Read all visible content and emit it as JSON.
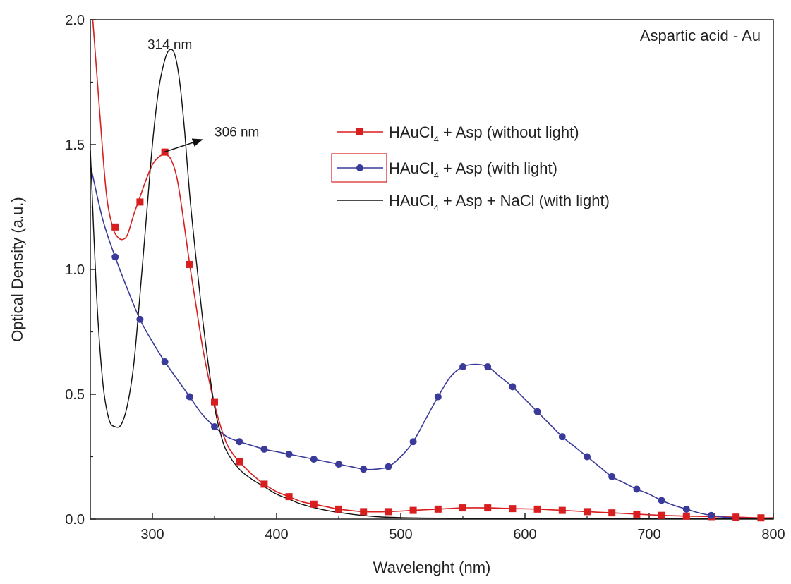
{
  "chart_data": {
    "type": "line",
    "title": "Aspartic acid - Au",
    "xlabel": "Wavelenght (nm)",
    "ylabel": "Optical Density (a.u.)",
    "xlim": [
      250,
      800
    ],
    "ylim": [
      0,
      2.0
    ],
    "x_ticks": [
      300,
      400,
      500,
      600,
      700,
      800
    ],
    "x_tick_labels": [
      "300",
      "400",
      "500",
      "600",
      "700",
      "800"
    ],
    "y_ticks": [
      0,
      0.5,
      1.0,
      1.5,
      2.0
    ],
    "y_tick_labels": [
      "0.0",
      "0.5",
      "1.0",
      "1.5",
      "2.0"
    ],
    "grid": false,
    "legend_position": "top-right",
    "series": [
      {
        "name": "HAuCl4 + Asp (without light)",
        "legend_main": "HAuCl",
        "legend_sub": "4",
        "legend_rest": " + Asp (without light)",
        "color": "#d81e1e",
        "marker": "square",
        "x": [
          252,
          258,
          263,
          268,
          272,
          276,
          280,
          285,
          290,
          295,
          300,
          305,
          310,
          315,
          320,
          325,
          330,
          335,
          340,
          345,
          350,
          355,
          360,
          365,
          370,
          380,
          390,
          400,
          410,
          420,
          430,
          440,
          450,
          470,
          490,
          510,
          530,
          550,
          570,
          590,
          610,
          630,
          650,
          670,
          690,
          710,
          730,
          750,
          770,
          790,
          800
        ],
        "y": [
          2.0,
          1.6,
          1.3,
          1.17,
          1.13,
          1.12,
          1.14,
          1.22,
          1.29,
          1.36,
          1.42,
          1.45,
          1.46,
          1.44,
          1.36,
          1.2,
          1.02,
          0.86,
          0.7,
          0.57,
          0.46,
          0.37,
          0.3,
          0.26,
          0.23,
          0.18,
          0.14,
          0.11,
          0.09,
          0.07,
          0.06,
          0.05,
          0.04,
          0.03,
          0.03,
          0.035,
          0.04,
          0.045,
          0.045,
          0.042,
          0.04,
          0.035,
          0.03,
          0.025,
          0.02,
          0.015,
          0.012,
          0.01,
          0.008,
          0.005,
          0.005
        ],
        "markers_x": [
          270,
          290,
          310,
          330,
          350,
          370,
          390,
          410,
          430,
          450,
          470,
          490,
          510,
          530,
          550,
          570,
          590,
          610,
          630,
          650,
          670,
          690,
          710,
          730,
          750,
          770,
          790
        ],
        "markers_y": [
          1.17,
          1.27,
          1.47,
          1.02,
          0.47,
          0.23,
          0.14,
          0.09,
          0.06,
          0.04,
          0.03,
          0.03,
          0.035,
          0.04,
          0.045,
          0.045,
          0.042,
          0.04,
          0.035,
          0.03,
          0.025,
          0.02,
          0.015,
          0.012,
          0.01,
          0.008,
          0.005
        ]
      },
      {
        "name": "HAuCl4 + Asp (with light)",
        "legend_main": "HAuCl",
        "legend_sub": "4",
        "legend_rest": " + Asp (with light)",
        "color": "#3a3a9a",
        "marker": "circle",
        "x": [
          250,
          260,
          270,
          280,
          290,
          300,
          310,
          320,
          330,
          340,
          350,
          360,
          370,
          380,
          390,
          400,
          410,
          420,
          430,
          440,
          450,
          460,
          470,
          480,
          490,
          500,
          510,
          520,
          530,
          540,
          550,
          560,
          570,
          580,
          590,
          600,
          610,
          620,
          630,
          640,
          650,
          660,
          670,
          680,
          690,
          700,
          710,
          720,
          730,
          740,
          750,
          760,
          770,
          780,
          790,
          800
        ],
        "y": [
          1.42,
          1.2,
          1.05,
          0.92,
          0.8,
          0.71,
          0.63,
          0.56,
          0.49,
          0.42,
          0.37,
          0.33,
          0.31,
          0.295,
          0.28,
          0.27,
          0.26,
          0.25,
          0.24,
          0.23,
          0.22,
          0.21,
          0.2,
          0.2,
          0.21,
          0.25,
          0.31,
          0.4,
          0.49,
          0.57,
          0.61,
          0.62,
          0.61,
          0.57,
          0.53,
          0.48,
          0.43,
          0.38,
          0.33,
          0.29,
          0.25,
          0.21,
          0.17,
          0.145,
          0.12,
          0.1,
          0.075,
          0.055,
          0.04,
          0.025,
          0.015,
          0.008,
          0.005,
          0.003,
          0.002,
          0.001
        ],
        "markers_x": [
          270,
          290,
          310,
          330,
          350,
          370,
          390,
          410,
          430,
          450,
          470,
          490,
          510,
          530,
          550,
          570,
          590,
          610,
          630,
          650,
          670,
          690,
          710,
          730,
          750
        ],
        "markers_y": [
          1.05,
          0.8,
          0.63,
          0.49,
          0.37,
          0.31,
          0.28,
          0.26,
          0.24,
          0.22,
          0.2,
          0.21,
          0.31,
          0.49,
          0.61,
          0.61,
          0.53,
          0.43,
          0.33,
          0.25,
          0.17,
          0.12,
          0.075,
          0.04,
          0.015
        ]
      },
      {
        "name": "HAuCl4 + Asp + NaCl (with light)",
        "legend_main": "HAuCl",
        "legend_sub": "4",
        "legend_rest": " + Asp + NaCl (with light)",
        "color": "#111111",
        "marker": "none",
        "x": [
          250,
          255,
          260,
          265,
          270,
          275,
          280,
          285,
          290,
          295,
          300,
          305,
          310,
          314,
          318,
          322,
          326,
          330,
          335,
          340,
          345,
          350,
          355,
          360,
          370,
          380,
          390,
          400,
          410,
          420,
          440,
          460,
          480,
          500,
          520,
          550,
          600,
          650,
          700,
          750,
          800
        ],
        "y": [
          1.48,
          0.9,
          0.55,
          0.4,
          0.37,
          0.38,
          0.46,
          0.62,
          0.9,
          1.2,
          1.5,
          1.72,
          1.84,
          1.88,
          1.86,
          1.75,
          1.55,
          1.3,
          1.05,
          0.82,
          0.62,
          0.45,
          0.34,
          0.27,
          0.2,
          0.16,
          0.13,
          0.1,
          0.08,
          0.06,
          0.035,
          0.02,
          0.01,
          0.006,
          0.004,
          0.003,
          0.002,
          0.002,
          0.001,
          0.001,
          0.001
        ]
      }
    ],
    "annotations": [
      {
        "text": "314 nm",
        "x": 314,
        "y": 1.9
      },
      {
        "text": "306 nm",
        "x": 350,
        "y": 1.55,
        "arrow_from": [
          306,
          1.47
        ],
        "arrow_to": [
          340,
          1.52
        ]
      }
    ]
  }
}
